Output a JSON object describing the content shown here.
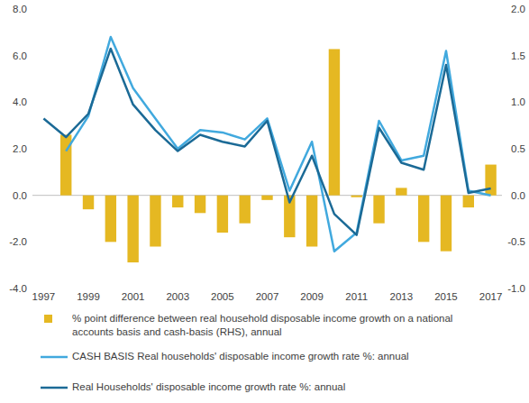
{
  "chart_data": {
    "type": "bar",
    "categories": [
      1997,
      null,
      1999,
      null,
      2001,
      null,
      2003,
      null,
      2005,
      null,
      2007,
      null,
      2009,
      null,
      2011,
      null,
      2013,
      null,
      2015,
      null,
      2017
    ],
    "ylim": [
      -4,
      8
    ],
    "yticks": [
      {
        "value": -4,
        "label": "-4.0"
      },
      {
        "value": -2,
        "label": "-2.0"
      },
      {
        "value": 0,
        "label": "0.0"
      },
      {
        "value": 2,
        "label": "2.0"
      },
      {
        "value": 4,
        "label": "4.0"
      },
      {
        "value": 6,
        "label": "6.0"
      },
      {
        "value": 8,
        "label": "8.0"
      }
    ],
    "y2lim": [
      -1,
      2
    ],
    "y2ticks": [
      {
        "value": -1,
        "label": "-1.0"
      },
      -0.5,
      {
        "value": 0,
        "label": "0.0"
      },
      0.5,
      {
        "value": 1,
        "label": "1.0"
      },
      1.5,
      {
        "value": 2,
        "label": "2.0"
      }
    ],
    "grid": false,
    "legend": "bottom",
    "series": [
      {
        "name": "% point difference between real household disposable income growth on a national accounts basis and cash-basis (RHS), annual",
        "type": "bar",
        "axis": "y2",
        "color": "#e5b822",
        "values": [
          null,
          0.65,
          -0.15,
          -0.5,
          -0.72,
          -0.55,
          -0.13,
          -0.19,
          -0.4,
          -0.3,
          -0.05,
          -0.45,
          -0.55,
          1.57,
          -0.02,
          -0.3,
          0.08,
          -0.5,
          -0.6,
          -0.13,
          0.33
        ]
      },
      {
        "name": "CASH BASIS Real households' disposable income growth rate %: annual",
        "type": "line",
        "color": "#41a9de",
        "values": [
          null,
          1.9,
          3.4,
          6.8,
          4.6,
          3.3,
          2.0,
          2.8,
          2.7,
          2.4,
          3.3,
          0.2,
          2.3,
          -2.4,
          -1.6,
          3.2,
          1.5,
          1.7,
          6.2,
          0.2,
          0.0
        ]
      },
      {
        "name": "Real Households' disposable income growth rate %: annual",
        "type": "line",
        "color": "#1b6a96",
        "values": [
          3.3,
          2.5,
          3.5,
          6.3,
          3.9,
          2.8,
          1.9,
          2.6,
          2.3,
          2.1,
          3.2,
          -0.3,
          1.7,
          -0.8,
          -1.7,
          2.9,
          1.4,
          1.1,
          5.6,
          0.1,
          0.3
        ]
      }
    ]
  }
}
